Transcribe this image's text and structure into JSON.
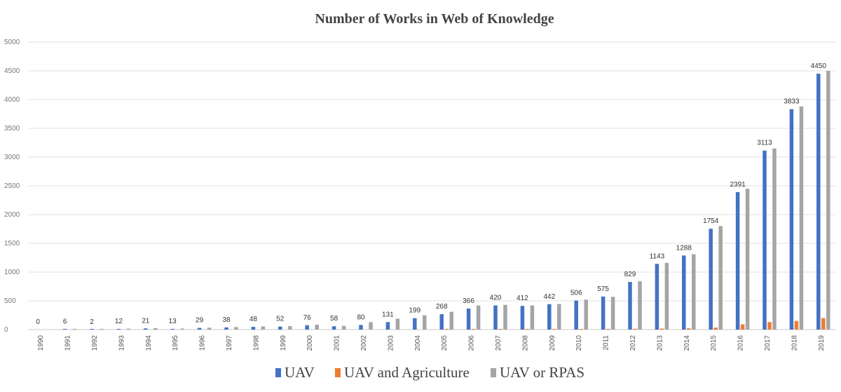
{
  "chart_data": {
    "type": "bar",
    "title": "Number of Works in Web of Knowledge",
    "xlabel": "",
    "ylabel": "",
    "ylim": [
      0,
      5000
    ],
    "yticks": [
      "0",
      "500",
      "1000",
      "1500",
      "2000",
      "2500",
      "3000",
      "3500",
      "4000",
      "4500",
      "5000"
    ],
    "grid": true,
    "legend_position": "bottom",
    "categories": [
      "1990",
      "1991",
      "1992",
      "1993",
      "1994",
      "1995",
      "1996",
      "1997",
      "1998",
      "1999",
      "2000",
      "2001",
      "2002",
      "2003",
      "2004",
      "2005",
      "2006",
      "2007",
      "2008",
      "2009",
      "2010",
      "2011",
      "2012",
      "2013",
      "2014",
      "2015",
      "2016",
      "2017",
      "2018",
      "2019"
    ],
    "series": [
      {
        "name": "UAV",
        "color": "#4472c4",
        "values": [
          0,
          6,
          2,
          12,
          21,
          13,
          29,
          38,
          48,
          52,
          76,
          58,
          80,
          131,
          199,
          268,
          366,
          420,
          412,
          442,
          506,
          575,
          829,
          1143,
          1288,
          1754,
          2391,
          3113,
          3833,
          4450
        ],
        "labels": [
          "0",
          "6",
          "2",
          "12",
          "21",
          "13",
          "29",
          "38",
          "48",
          "52",
          "76",
          "58",
          "80",
          "131",
          "199",
          "268",
          "366",
          "420",
          "412",
          "442",
          "506",
          "575",
          "829",
          "1143",
          "1288",
          "1754",
          "2391",
          "3113",
          "3833",
          "4450"
        ]
      },
      {
        "name": "UAV and Agriculture",
        "color": "#ed7d31",
        "values": [
          0,
          0,
          0,
          0,
          0,
          0,
          0,
          0,
          0,
          0,
          0,
          0,
          0,
          0,
          0,
          2,
          3,
          4,
          3,
          5,
          8,
          10,
          14,
          18,
          22,
          35,
          90,
          130,
          150,
          200
        ]
      },
      {
        "name": "UAV  or RPAS",
        "color": "#a5a5a5",
        "values": [
          0,
          8,
          6,
          16,
          25,
          18,
          33,
          44,
          55,
          60,
          85,
          65,
          130,
          190,
          250,
          310,
          420,
          430,
          420,
          445,
          520,
          570,
          840,
          1160,
          1310,
          1800,
          2450,
          3150,
          3880,
          4500
        ]
      }
    ]
  }
}
